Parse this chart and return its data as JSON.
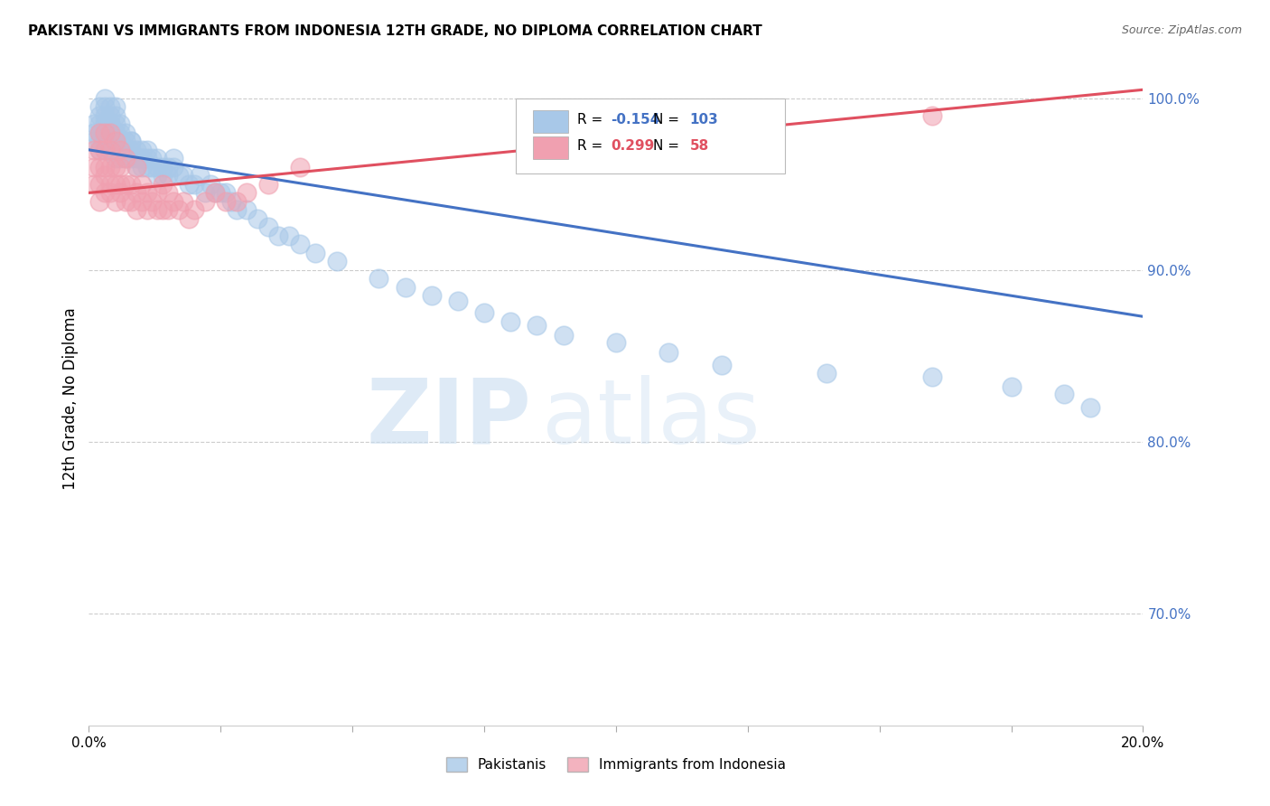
{
  "title": "PAKISTANI VS IMMIGRANTS FROM INDONESIA 12TH GRADE, NO DIPLOMA CORRELATION CHART",
  "source": "Source: ZipAtlas.com",
  "ylabel": "12th Grade, No Diploma",
  "xlim": [
    0.0,
    0.2
  ],
  "ylim": [
    0.635,
    1.015
  ],
  "yticks": [
    0.7,
    0.8,
    0.9,
    1.0
  ],
  "ytick_labels": [
    "70.0%",
    "80.0%",
    "90.0%",
    "100.0%"
  ],
  "blue_R": -0.154,
  "blue_N": 103,
  "pink_R": 0.299,
  "pink_N": 58,
  "blue_color": "#a8c8e8",
  "pink_color": "#f0a0b0",
  "blue_line_color": "#4472c4",
  "pink_line_color": "#e05060",
  "legend_label_blue": "Pakistanis",
  "legend_label_pink": "Immigrants from Indonesia",
  "watermark_zip": "ZIP",
  "watermark_atlas": "atlas",
  "blue_line_x0": 0.0,
  "blue_line_y0": 0.97,
  "blue_line_x1": 0.2,
  "blue_line_y1": 0.873,
  "pink_line_x0": 0.0,
  "pink_line_y0": 0.945,
  "pink_line_x1": 0.2,
  "pink_line_y1": 1.005,
  "blue_scatter_x": [
    0.001,
    0.001,
    0.001,
    0.002,
    0.002,
    0.002,
    0.002,
    0.002,
    0.002,
    0.003,
    0.003,
    0.003,
    0.003,
    0.003,
    0.003,
    0.003,
    0.004,
    0.004,
    0.004,
    0.004,
    0.004,
    0.004,
    0.004,
    0.004,
    0.005,
    0.005,
    0.005,
    0.005,
    0.005,
    0.005,
    0.005,
    0.006,
    0.006,
    0.006,
    0.006,
    0.006,
    0.006,
    0.007,
    0.007,
    0.007,
    0.007,
    0.007,
    0.008,
    0.008,
    0.008,
    0.008,
    0.009,
    0.009,
    0.009,
    0.01,
    0.01,
    0.01,
    0.01,
    0.011,
    0.011,
    0.011,
    0.012,
    0.012,
    0.013,
    0.013,
    0.013,
    0.014,
    0.014,
    0.015,
    0.015,
    0.016,
    0.016,
    0.017,
    0.018,
    0.019,
    0.02,
    0.021,
    0.022,
    0.023,
    0.024,
    0.025,
    0.026,
    0.027,
    0.028,
    0.03,
    0.032,
    0.034,
    0.036,
    0.038,
    0.04,
    0.043,
    0.047,
    0.055,
    0.06,
    0.065,
    0.07,
    0.075,
    0.08,
    0.085,
    0.09,
    0.1,
    0.11,
    0.12,
    0.14,
    0.16,
    0.175,
    0.185,
    0.19
  ],
  "blue_scatter_y": [
    0.975,
    0.98,
    0.985,
    0.97,
    0.975,
    0.98,
    0.985,
    0.99,
    0.995,
    0.97,
    0.975,
    0.98,
    0.985,
    0.99,
    0.995,
    1.0,
    0.97,
    0.975,
    0.975,
    0.98,
    0.985,
    0.985,
    0.99,
    0.995,
    0.965,
    0.97,
    0.975,
    0.98,
    0.985,
    0.99,
    0.995,
    0.965,
    0.97,
    0.975,
    0.975,
    0.98,
    0.985,
    0.965,
    0.97,
    0.97,
    0.975,
    0.98,
    0.965,
    0.97,
    0.975,
    0.975,
    0.96,
    0.965,
    0.97,
    0.96,
    0.965,
    0.965,
    0.97,
    0.96,
    0.965,
    0.97,
    0.96,
    0.965,
    0.955,
    0.96,
    0.965,
    0.955,
    0.96,
    0.955,
    0.96,
    0.96,
    0.965,
    0.955,
    0.955,
    0.95,
    0.95,
    0.955,
    0.945,
    0.95,
    0.945,
    0.945,
    0.945,
    0.94,
    0.935,
    0.935,
    0.93,
    0.925,
    0.92,
    0.92,
    0.915,
    0.91,
    0.905,
    0.895,
    0.89,
    0.885,
    0.882,
    0.875,
    0.87,
    0.868,
    0.862,
    0.858,
    0.852,
    0.845,
    0.84,
    0.838,
    0.832,
    0.828,
    0.82
  ],
  "pink_scatter_x": [
    0.001,
    0.001,
    0.001,
    0.002,
    0.002,
    0.002,
    0.002,
    0.002,
    0.003,
    0.003,
    0.003,
    0.003,
    0.003,
    0.004,
    0.004,
    0.004,
    0.004,
    0.004,
    0.005,
    0.005,
    0.005,
    0.005,
    0.006,
    0.006,
    0.006,
    0.006,
    0.007,
    0.007,
    0.007,
    0.008,
    0.008,
    0.009,
    0.009,
    0.009,
    0.01,
    0.01,
    0.011,
    0.011,
    0.012,
    0.013,
    0.013,
    0.014,
    0.014,
    0.015,
    0.015,
    0.016,
    0.017,
    0.018,
    0.019,
    0.02,
    0.022,
    0.024,
    0.026,
    0.028,
    0.03,
    0.034,
    0.04,
    0.16
  ],
  "pink_scatter_y": [
    0.95,
    0.96,
    0.97,
    0.94,
    0.95,
    0.96,
    0.97,
    0.98,
    0.945,
    0.955,
    0.96,
    0.97,
    0.98,
    0.945,
    0.95,
    0.96,
    0.97,
    0.98,
    0.94,
    0.95,
    0.96,
    0.975,
    0.945,
    0.95,
    0.96,
    0.97,
    0.94,
    0.95,
    0.965,
    0.94,
    0.95,
    0.935,
    0.945,
    0.96,
    0.94,
    0.95,
    0.935,
    0.945,
    0.94,
    0.935,
    0.945,
    0.935,
    0.95,
    0.935,
    0.945,
    0.94,
    0.935,
    0.94,
    0.93,
    0.935,
    0.94,
    0.945,
    0.94,
    0.94,
    0.945,
    0.95,
    0.96,
    0.99
  ]
}
